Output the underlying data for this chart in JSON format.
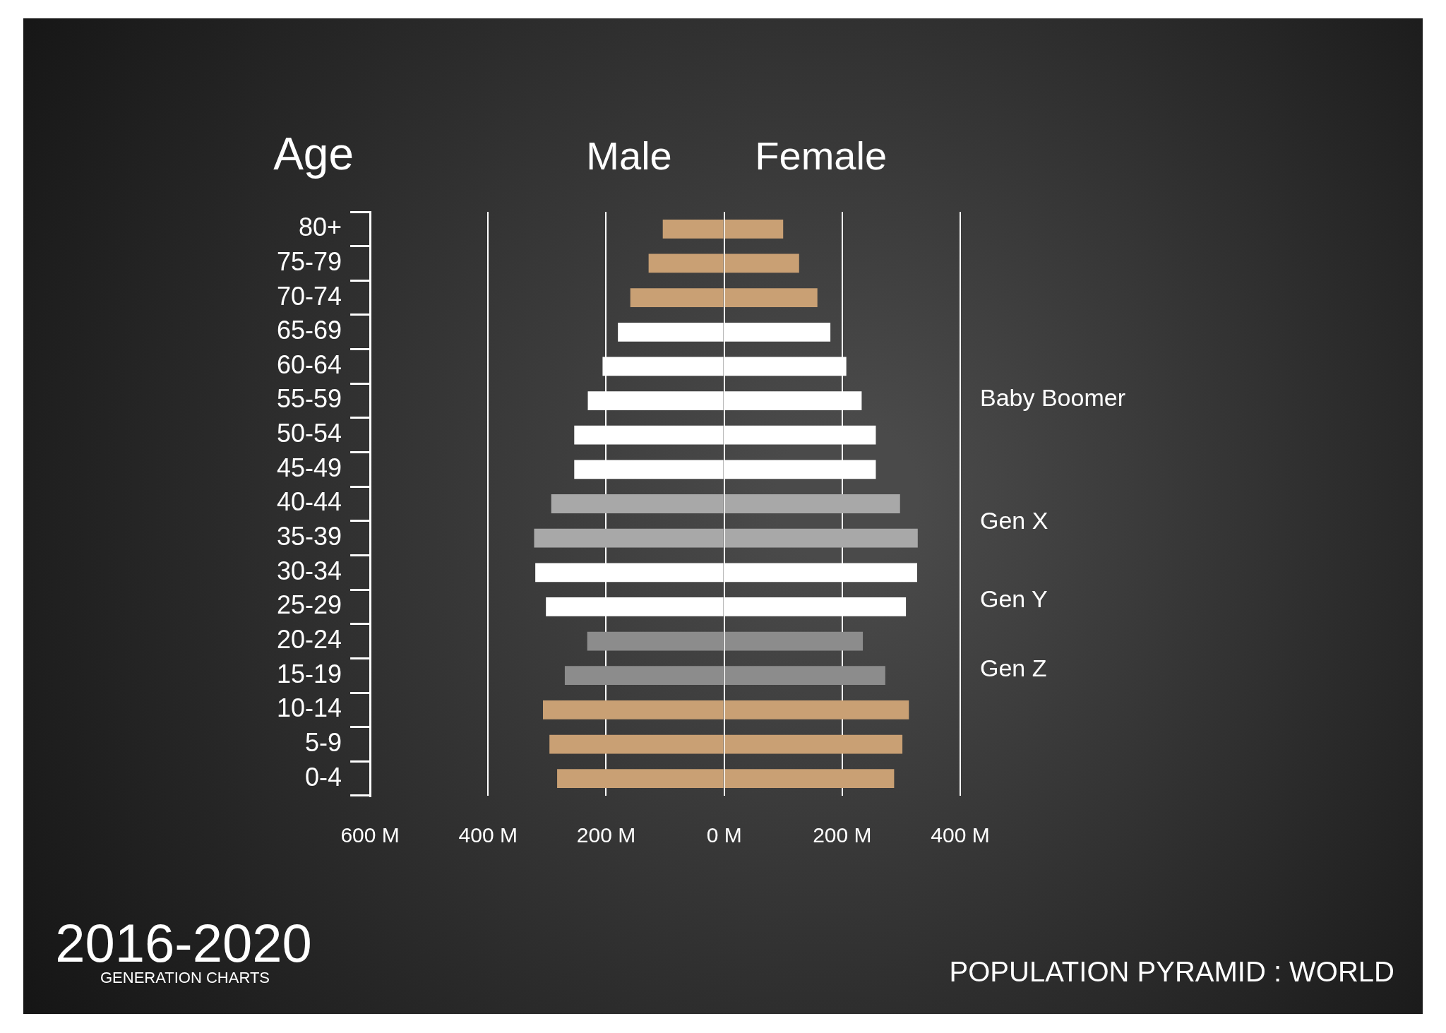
{
  "chart_data": {
    "type": "bar",
    "orientation": "horizontal",
    "stacked": true,
    "title": "POPULATION PYRAMID : WORLD",
    "ylabel": "Age",
    "categories": [
      "80+",
      "75-79",
      "70-74",
      "65-69",
      "60-64",
      "55-59",
      "50-54",
      "45-49",
      "40-44",
      "35-39",
      "30-34",
      "25-29",
      "20-24",
      "15-19",
      "10-14",
      "5-9",
      "0-4"
    ],
    "series": [
      {
        "name": "Male",
        "values": [
          -104,
          -128,
          -159,
          -180,
          -206,
          -231,
          -254,
          -254,
          -293,
          -322,
          -320,
          -302,
          -232,
          -270,
          -307,
          -296,
          -283
        ],
        "colors": [
          "#c9a074",
          "#c9a074",
          "#c9a074",
          "#ffffff",
          "#ffffff",
          "#ffffff",
          "#ffffff",
          "#ffffff",
          "#a8a8a8",
          "#a8a8a8",
          "#ffffff",
          "#ffffff",
          "#8c8c8c",
          "#8c8c8c",
          "#c9a074",
          "#c9a074",
          "#c9a074"
        ]
      },
      {
        "name": "Female",
        "values": [
          100,
          127,
          158,
          180,
          207,
          233,
          257,
          257,
          298,
          328,
          327,
          308,
          235,
          273,
          313,
          302,
          288
        ],
        "colors": [
          "#c9a074",
          "#c9a074",
          "#c9a074",
          "#ffffff",
          "#ffffff",
          "#ffffff",
          "#ffffff",
          "#ffffff",
          "#a8a8a8",
          "#a8a8a8",
          "#ffffff",
          "#ffffff",
          "#8c8c8c",
          "#8c8c8c",
          "#c9a074",
          "#c9a074",
          "#c9a074"
        ]
      }
    ],
    "xlim": [
      -600,
      400
    ],
    "xticks": [
      {
        "value": -600,
        "label": "600 M"
      },
      {
        "value": -400,
        "label": "400 M"
      },
      {
        "value": -200,
        "label": "200 M"
      },
      {
        "value": 0,
        "label": "0 M"
      },
      {
        "value": 200,
        "label": "200 M"
      },
      {
        "value": 400,
        "label": "400 M"
      }
    ],
    "grid": "x",
    "legend": false,
    "annotations": [
      "2016-2020",
      "GENERATION CHARTS",
      "Baby Boomer",
      "Gen X",
      "Gen Y",
      "Gen Z"
    ]
  }
}
